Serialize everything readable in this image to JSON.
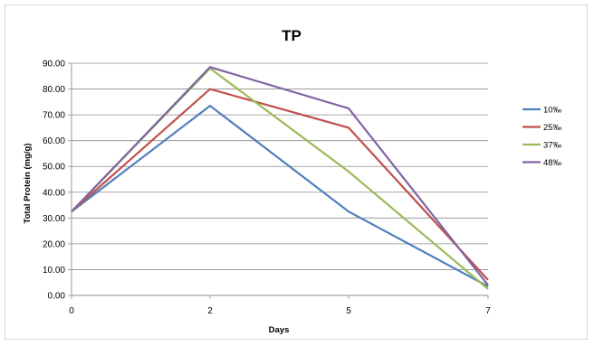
{
  "chart_data": {
    "type": "line",
    "title": "TP",
    "xlabel": "Days",
    "ylabel": "Total Protein (mg/g)",
    "x": [
      "0",
      "2",
      "5",
      "7"
    ],
    "ylim": [
      0,
      90
    ],
    "yticks": [
      "0.00",
      "10.00",
      "20.00",
      "30.00",
      "40.00",
      "50.00",
      "60.00",
      "70.00",
      "80.00",
      "90.00"
    ],
    "grid": true,
    "legend_position": "right",
    "series": [
      {
        "name": "10‰",
        "color": "#4f81bd",
        "values": [
          32.5,
          73.5,
          32.5,
          3.5
        ]
      },
      {
        "name": "25‰",
        "color": "#c0504d",
        "values": [
          32.5,
          80.0,
          65.0,
          6.0
        ]
      },
      {
        "name": "37‰",
        "color": "#9bbb59",
        "values": [
          32.5,
          88.0,
          48.0,
          2.5
        ]
      },
      {
        "name": "48‰",
        "color": "#8064a2",
        "values": [
          32.5,
          88.5,
          72.5,
          4.0
        ]
      }
    ]
  }
}
